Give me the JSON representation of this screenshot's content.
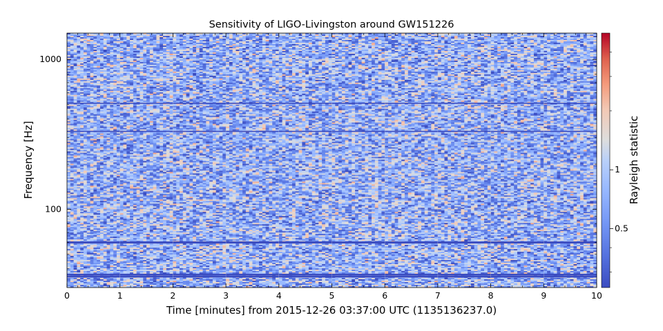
{
  "chart_data": {
    "type": "heatmap",
    "title": "Sensitivity of LIGO-Livingston around GW151226",
    "xlabel": "Time [minutes] from 2015-12-26 03:37:00 UTC (1135136237.0)",
    "ylabel": "Frequency [Hz]",
    "xlim": [
      0,
      10
    ],
    "ylim": [
      30,
      1500
    ],
    "yscale": "log",
    "x_ticks": [
      "0",
      "1",
      "2",
      "3",
      "4",
      "5",
      "6",
      "7",
      "8",
      "9",
      "10"
    ],
    "y_ticks": [
      "100",
      "1000"
    ],
    "colorbar": {
      "label": "Rayleigh statistic",
      "colormap": "coolwarm",
      "scale": "log",
      "range": [
        0.25,
        5
      ],
      "ticks": [
        "0.5",
        "1"
      ]
    },
    "background_mean": 0.75,
    "spectral_lines_hz": [
      35.5,
      36.6,
      60,
      331,
      510
    ],
    "colors": {
      "low": "#3b4cc0",
      "mid": "#dddddd",
      "high": "#b40426"
    },
    "grid": true
  }
}
